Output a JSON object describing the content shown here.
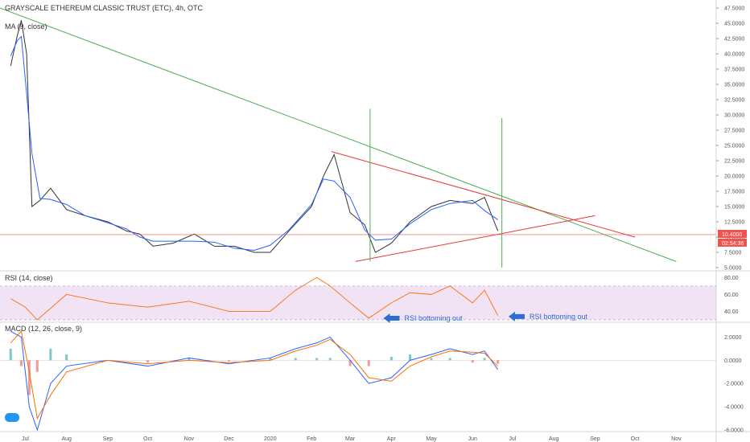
{
  "chart_data": [
    {
      "type": "line",
      "panel": "price",
      "title": "GRAYSCALE ETHEREUM CLASSIC TRUST (ETC), 4h, OTC",
      "indicator_label": "MA (9, close)",
      "x_labels": [
        "Jul",
        "Aug",
        "Sep",
        "Oct",
        "Nov",
        "Dec",
        "2020",
        "Feb",
        "Mar",
        "Apr",
        "May",
        "Jun",
        "Jul",
        "Aug",
        "Sep",
        "Oct",
        "Nov"
      ],
      "ylim": [
        5.0,
        47.5
      ],
      "y_ticks": [
        "47.5000",
        "45.0000",
        "42.5000",
        "40.0000",
        "37.5000",
        "35.0000",
        "32.5000",
        "30.0000",
        "27.5000",
        "25.0000",
        "22.5000",
        "20.0000",
        "17.5000",
        "15.0000",
        "12.5000",
        "10.0000",
        "7.5000",
        "5.0000"
      ],
      "y_tick_values": [
        47.5,
        45.0,
        42.5,
        40.0,
        37.5,
        35.0,
        32.5,
        30.0,
        27.5,
        25.0,
        22.5,
        20.0,
        17.5,
        15.0,
        12.5,
        10.0,
        7.5,
        5.0
      ],
      "current_price_label": "10.4000",
      "countdown_label": "02:54:36",
      "series": [
        {
          "values_x": [
            "2019-06-20",
            "2019-06-25",
            "2019-06-28",
            "2019-07-02",
            "2019-07-06",
            "2019-07-12",
            "2019-07-20",
            "2019-08-01",
            "2019-08-15",
            "2019-09-01",
            "2019-09-15",
            "2019-09-25",
            "2019-10-05",
            "2019-10-20",
            "2019-11-05",
            "2019-11-20",
            "2019-12-05",
            "2019-12-20",
            "2020-01-01",
            "2020-01-15",
            "2020-02-01",
            "2020-02-10",
            "2020-02-18",
            "2020-03-01",
            "2020-03-12",
            "2020-03-20",
            "2020-04-01",
            "2020-04-15",
            "2020-05-01",
            "2020-05-15",
            "2020-06-01",
            "2020-06-10",
            "2020-06-20"
          ],
          "values_y": [
            38.0,
            43.0,
            45.5,
            40.0,
            15.0,
            16.0,
            18.0,
            14.5,
            13.5,
            12.5,
            11.0,
            10.5,
            8.5,
            9.0,
            10.5,
            8.5,
            8.5,
            7.5,
            7.5,
            11.0,
            15.0,
            20.0,
            23.5,
            14.0,
            12.0,
            7.5,
            9.0,
            12.5,
            15.0,
            16.0,
            15.5,
            16.5,
            11.0
          ]
        }
      ],
      "trendlines_y": {
        "green_descending": [
          47.5,
          6.0
        ],
        "red_upper": [
          24.0,
          10.0
        ],
        "red_lower": [
          6.0,
          13.5
        ],
        "price_line": 10.4,
        "vertical_green_1": [
          6.0,
          31.0
        ],
        "vertical_green_2": [
          5.0,
          29.5
        ]
      },
      "colors": {
        "price": "#333333",
        "ma": "#2962ff",
        "trend_green": "#4caf50",
        "trend_red": "#e53935",
        "price_line": "#ef5350"
      }
    },
    {
      "type": "line",
      "panel": "rsi",
      "title": "RSI (14, close)",
      "ylim": [
        30,
        85
      ],
      "y_ticks": [
        "80.00",
        "60.00",
        "40.00"
      ],
      "y_tick_values": [
        80,
        60,
        40
      ],
      "band": [
        30,
        70
      ],
      "series": [
        {
          "values_x": [
            "2019-06-20",
            "2019-07-01",
            "2019-07-10",
            "2019-08-01",
            "2019-09-01",
            "2019-10-01",
            "2019-11-01",
            "2019-12-01",
            "2020-01-01",
            "2020-01-20",
            "2020-02-05",
            "2020-02-15",
            "2020-03-01",
            "2020-03-15",
            "2020-04-01",
            "2020-04-15",
            "2020-05-01",
            "2020-05-15",
            "2020-06-01",
            "2020-06-10",
            "2020-06-20"
          ],
          "values_y": [
            55,
            45,
            30,
            60,
            50,
            45,
            52,
            40,
            40,
            65,
            80,
            70,
            50,
            32,
            50,
            62,
            60,
            70,
            50,
            65,
            35
          ]
        }
      ],
      "annotations": [
        {
          "text": "RSI bottoming out",
          "x": "2020-03-20",
          "y": 30
        },
        {
          "text": "RSI bottoming out",
          "x": "2020-06-22",
          "y": 32
        }
      ],
      "colors": {
        "line": "#ff6d00",
        "band": "#e1bee7",
        "arrow": "#2a6fd1"
      }
    },
    {
      "type": "line",
      "panel": "macd",
      "title": "MACD (12, 26, close, 9)",
      "ylim": [
        -6,
        3
      ],
      "y_ticks": [
        "2.0000",
        "0.0000",
        "-2.0000",
        "-4.0000",
        "-6.0000"
      ],
      "y_tick_values": [
        2,
        0,
        -2,
        -4,
        -6
      ],
      "series": [
        {
          "name": "",
          "values_x": [
            "2019-06-20",
            "2019-06-28",
            "2019-07-04",
            "2019-07-10",
            "2019-07-20",
            "2019-08-01",
            "2019-09-01",
            "2019-10-01",
            "2019-11-01",
            "2019-12-01",
            "2020-01-01",
            "2020-01-20",
            "2020-02-05",
            "2020-02-15",
            "2020-03-01",
            "2020-03-15",
            "2020-04-01",
            "2020-04-15",
            "2020-05-01",
            "2020-05-15",
            "2020-06-01",
            "2020-06-10",
            "2020-06-20"
          ],
          "values_y": [
            2.5,
            2.0,
            -4.0,
            -6.0,
            -2.0,
            -0.5,
            0.0,
            -0.5,
            0.2,
            -0.3,
            0.2,
            1.0,
            1.5,
            2.0,
            0.0,
            -2.0,
            -1.5,
            0.0,
            0.5,
            1.0,
            0.5,
            0.8,
            -0.8
          ]
        },
        {
          "name": "",
          "values_x": [
            "2019-06-20",
            "2019-06-28",
            "2019-07-04",
            "2019-07-10",
            "2019-07-20",
            "2019-08-01",
            "2019-09-01",
            "2019-10-01",
            "2019-11-01",
            "2019-12-01",
            "2020-01-01",
            "2020-01-20",
            "2020-02-05",
            "2020-02-15",
            "2020-03-01",
            "2020-03-15",
            "2020-04-01",
            "2020-04-15",
            "2020-05-01",
            "2020-05-15",
            "2020-06-01",
            "2020-06-10",
            "2020-06-20"
          ],
          "values_y": [
            1.5,
            2.5,
            -1.0,
            -5.0,
            -3.0,
            -1.0,
            0.0,
            -0.3,
            0.0,
            -0.2,
            0.0,
            0.8,
            1.3,
            1.8,
            0.5,
            -1.5,
            -1.8,
            -0.5,
            0.3,
            0.8,
            0.7,
            0.6,
            -0.5
          ]
        }
      ],
      "colors": {
        "macd": "#2962ff",
        "signal": "#ff6d00",
        "hist_pos": "#26a69a",
        "hist_neg": "#ef5350"
      }
    }
  ]
}
